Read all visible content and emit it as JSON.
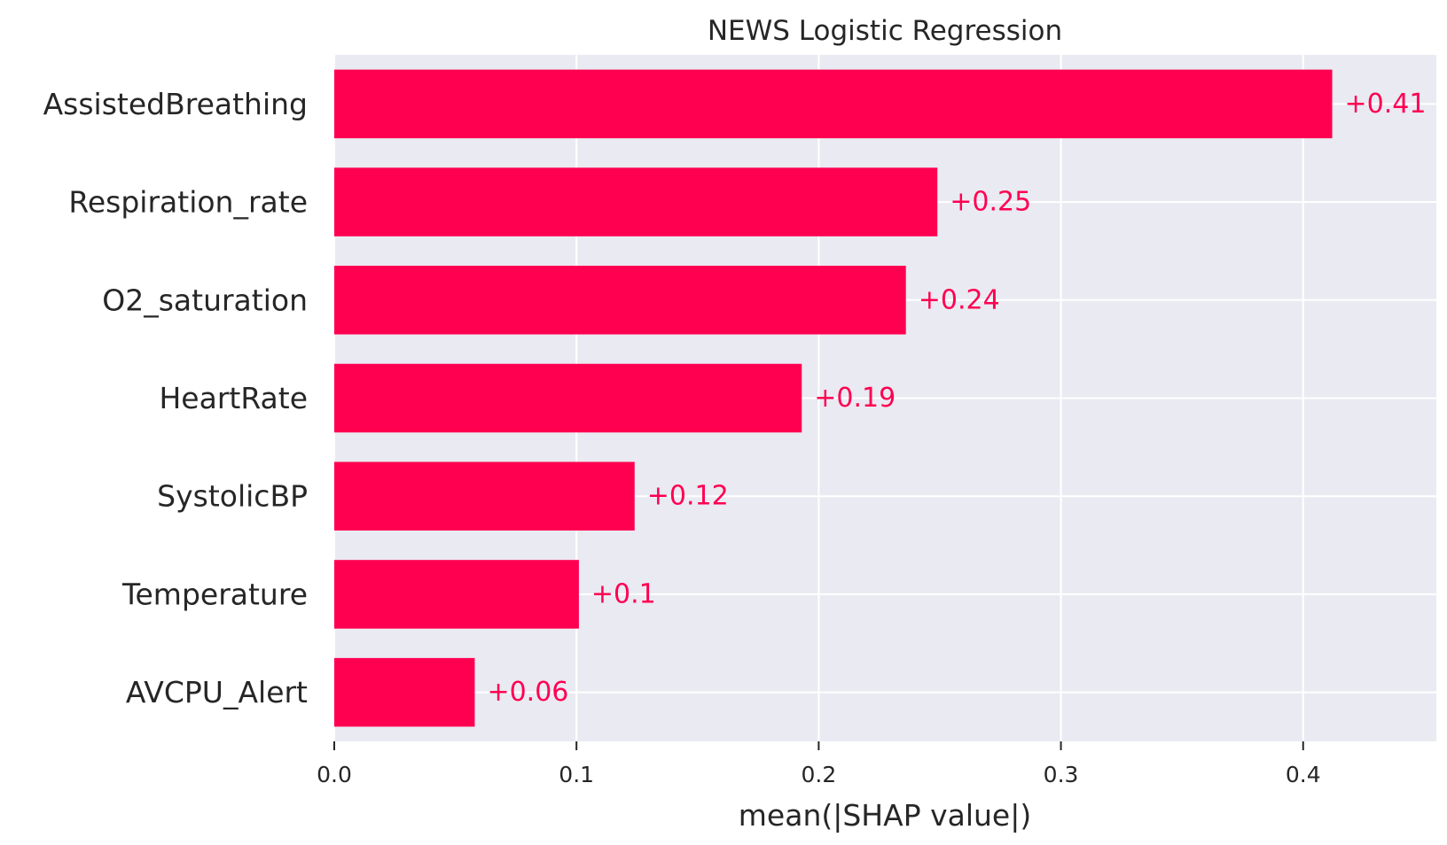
{
  "chart_data": {
    "type": "bar",
    "orientation": "horizontal",
    "title": "NEWS Logistic Regression",
    "xlabel": "mean(|SHAP value|)",
    "ylabel": "",
    "categories": [
      "AssistedBreathing",
      "Respiration_rate",
      "O2_saturation",
      "HeartRate",
      "SystolicBP",
      "Temperature",
      "AVCPU_Alert"
    ],
    "values": [
      0.412,
      0.249,
      0.236,
      0.193,
      0.124,
      0.101,
      0.058
    ],
    "value_labels": [
      "+0.41",
      "+0.25",
      "+0.24",
      "+0.19",
      "+0.12",
      "+0.1",
      "+0.06"
    ],
    "xlim": [
      0,
      0.455
    ],
    "xticks": [
      0.0,
      0.1,
      0.2,
      0.3,
      0.4
    ],
    "xtick_labels": [
      "0.0",
      "0.1",
      "0.2",
      "0.3",
      "0.4"
    ],
    "grid": true,
    "legend": "none",
    "colors": {
      "bar": "#ff0051",
      "label": "#ff0051",
      "plot_background": "#eaeaf2",
      "grid": "#ffffff",
      "text": "#262626"
    }
  }
}
